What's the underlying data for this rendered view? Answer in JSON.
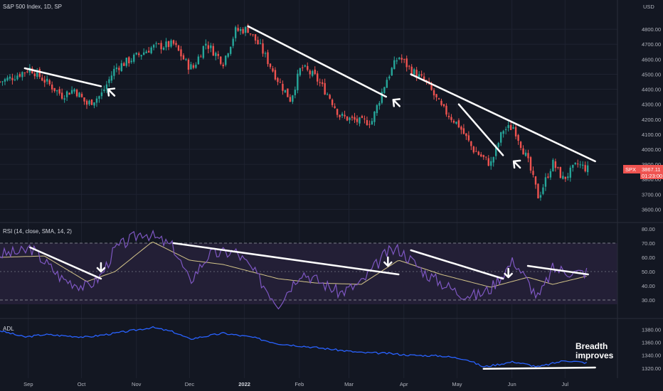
{
  "header": {
    "title": "S&P 500 Index, 1D, SP",
    "currency": "USD"
  },
  "price_badge": {
    "symbol": "SPX",
    "value": "3867.11",
    "timer": "01:23:00"
  },
  "colors": {
    "background": "#131722",
    "up": "#26a69a",
    "down": "#ef5350",
    "rsi_line": "#7e57c2",
    "rsi_ma": "#d4c58a",
    "rsi_band": "#2a2540",
    "adl_line": "#2962ff",
    "trendline": "#ffffff",
    "grid": "#1e2230"
  },
  "chart_data": [
    {
      "type": "candlestick",
      "title": "S&P 500 Index, 1D, SP",
      "ylim": [
        3550,
        4900
      ],
      "y_ticks": [
        "4800.00",
        "4700.00",
        "4600.00",
        "4500.00",
        "4400.00",
        "4300.00",
        "4200.00",
        "4100.00",
        "4000.00",
        "3900.00",
        "3800.00",
        "3700.00",
        "3600.00"
      ],
      "x_ticks": [
        "Sep",
        "Oct",
        "Nov",
        "Dec",
        "2022",
        "Feb",
        "Mar",
        "Apr",
        "May",
        "Jun",
        "Jul"
      ],
      "close_path": [
        {
          "d": "Aug 16",
          "v": 4450
        },
        {
          "d": "Aug 23",
          "v": 4480
        },
        {
          "d": "Aug 30",
          "v": 4520
        },
        {
          "d": "Sep 02",
          "v": 4540
        },
        {
          "d": "Sep 10",
          "v": 4460
        },
        {
          "d": "Sep 20",
          "v": 4360
        },
        {
          "d": "Sep 27",
          "v": 4400
        },
        {
          "d": "Oct 04",
          "v": 4300
        },
        {
          "d": "Oct 12",
          "v": 4360
        },
        {
          "d": "Oct 20",
          "v": 4540
        },
        {
          "d": "Nov 01",
          "v": 4620
        },
        {
          "d": "Nov 10",
          "v": 4680
        },
        {
          "d": "Nov 22",
          "v": 4700
        },
        {
          "d": "Nov 30",
          "v": 4560
        },
        {
          "d": "Dec 03",
          "v": 4540
        },
        {
          "d": "Dec 10",
          "v": 4710
        },
        {
          "d": "Dec 20",
          "v": 4580
        },
        {
          "d": "Dec 27",
          "v": 4790
        },
        {
          "d": "Jan 03",
          "v": 4800
        },
        {
          "d": "Jan 10",
          "v": 4680
        },
        {
          "d": "Jan 20",
          "v": 4460
        },
        {
          "d": "Jan 27",
          "v": 4330
        },
        {
          "d": "Feb 02",
          "v": 4550
        },
        {
          "d": "Feb 10",
          "v": 4480
        },
        {
          "d": "Feb 18",
          "v": 4350
        },
        {
          "d": "Feb 24",
          "v": 4220
        },
        {
          "d": "Mar 08",
          "v": 4180
        },
        {
          "d": "Mar 14",
          "v": 4190
        },
        {
          "d": "Mar 22",
          "v": 4460
        },
        {
          "d": "Mar 29",
          "v": 4620
        },
        {
          "d": "Apr 05",
          "v": 4530
        },
        {
          "d": "Apr 14",
          "v": 4440
        },
        {
          "d": "Apr 22",
          "v": 4280
        },
        {
          "d": "May 02",
          "v": 4160
        },
        {
          "d": "May 10",
          "v": 4000
        },
        {
          "d": "May 20",
          "v": 3900
        },
        {
          "d": "May 27",
          "v": 4130
        },
        {
          "d": "Jun 02",
          "v": 4150
        },
        {
          "d": "Jun 10",
          "v": 3920
        },
        {
          "d": "Jun 16",
          "v": 3680
        },
        {
          "d": "Jun 24",
          "v": 3910
        },
        {
          "d": "Jun 30",
          "v": 3800
        },
        {
          "d": "Jul 08",
          "v": 3900
        },
        {
          "d": "Jul 14",
          "v": 3867
        }
      ]
    },
    {
      "type": "line",
      "title": "RSI (14, close, SMA, 14, 2)",
      "ylim": [
        25,
        80
      ],
      "y_ticks": [
        "80.00",
        "70.00",
        "60.00",
        "50.00",
        "40.00",
        "30.00"
      ],
      "bands": [
        30,
        70
      ],
      "rsi": [
        {
          "d": "Aug 16",
          "v": 62
        },
        {
          "d": "Aug 30",
          "v": 64
        },
        {
          "d": "Sep 02",
          "v": 67
        },
        {
          "d": "Sep 20",
          "v": 45
        },
        {
          "d": "Oct 04",
          "v": 39
        },
        {
          "d": "Oct 12",
          "v": 47
        },
        {
          "d": "Oct 20",
          "v": 66
        },
        {
          "d": "Nov 05",
          "v": 78
        },
        {
          "d": "Nov 22",
          "v": 67
        },
        {
          "d": "Dec 01",
          "v": 43
        },
        {
          "d": "Dec 12",
          "v": 62
        },
        {
          "d": "Dec 27",
          "v": 64
        },
        {
          "d": "Jan 05",
          "v": 52
        },
        {
          "d": "Jan 20",
          "v": 27
        },
        {
          "d": "Feb 02",
          "v": 50
        },
        {
          "d": "Feb 24",
          "v": 35
        },
        {
          "d": "Mar 08",
          "v": 42
        },
        {
          "d": "Mar 22",
          "v": 63
        },
        {
          "d": "Mar 29",
          "v": 66
        },
        {
          "d": "Apr 14",
          "v": 48
        },
        {
          "d": "May 02",
          "v": 35
        },
        {
          "d": "May 12",
          "v": 33
        },
        {
          "d": "May 20",
          "v": 38
        },
        {
          "d": "Jun 02",
          "v": 58
        },
        {
          "d": "Jun 16",
          "v": 31
        },
        {
          "d": "Jun 24",
          "v": 52
        },
        {
          "d": "Jul 08",
          "v": 49
        },
        {
          "d": "Jul 14",
          "v": 50
        }
      ],
      "rsi_ma": [
        {
          "d": "Aug 16",
          "v": 60
        },
        {
          "d": "Sep 10",
          "v": 61
        },
        {
          "d": "Oct 04",
          "v": 43
        },
        {
          "d": "Oct 20",
          "v": 50
        },
        {
          "d": "Nov 10",
          "v": 71
        },
        {
          "d": "Dec 01",
          "v": 58
        },
        {
          "d": "Dec 20",
          "v": 55
        },
        {
          "d": "Jan 20",
          "v": 45
        },
        {
          "d": "Feb 10",
          "v": 42
        },
        {
          "d": "Mar 08",
          "v": 41
        },
        {
          "d": "Mar 29",
          "v": 58
        },
        {
          "d": "Apr 22",
          "v": 48
        },
        {
          "d": "May 20",
          "v": 39
        },
        {
          "d": "Jun 10",
          "v": 46
        },
        {
          "d": "Jun 24",
          "v": 41
        },
        {
          "d": "Jul 14",
          "v": 47
        }
      ]
    },
    {
      "type": "line",
      "title": "ADL",
      "ylim": [
        1310,
        1388
      ],
      "y_ticks": [
        "1380.00",
        "1360.00",
        "1340.00",
        "1320.00"
      ],
      "adl": [
        {
          "d": "Aug 16",
          "v": 1378
        },
        {
          "d": "Aug 30",
          "v": 1368
        },
        {
          "d": "Sep 10",
          "v": 1372
        },
        {
          "d": "Oct 04",
          "v": 1368
        },
        {
          "d": "Oct 20",
          "v": 1374
        },
        {
          "d": "Nov 10",
          "v": 1383
        },
        {
          "d": "Nov 22",
          "v": 1376
        },
        {
          "d": "Dec 01",
          "v": 1365
        },
        {
          "d": "Dec 20",
          "v": 1374
        },
        {
          "d": "Jan 05",
          "v": 1368
        },
        {
          "d": "Jan 20",
          "v": 1358
        },
        {
          "d": "Feb 10",
          "v": 1352
        },
        {
          "d": "Mar 08",
          "v": 1344
        },
        {
          "d": "Mar 22",
          "v": 1343
        },
        {
          "d": "Apr 05",
          "v": 1340
        },
        {
          "d": "Apr 22",
          "v": 1339
        },
        {
          "d": "May 06",
          "v": 1334
        },
        {
          "d": "May 16",
          "v": 1322
        },
        {
          "d": "Jun 02",
          "v": 1330
        },
        {
          "d": "Jun 16",
          "v": 1322
        },
        {
          "d": "Jul 01",
          "v": 1332
        },
        {
          "d": "Jul 14",
          "v": 1328
        }
      ]
    }
  ],
  "trendlines": {
    "price": [
      {
        "from": {
          "d": "Aug 30",
          "v": 4540
        },
        "to": {
          "d": "Oct 12",
          "v": 4420
        }
      },
      {
        "from": {
          "d": "Jan 03",
          "v": 4820
        },
        "to": {
          "d": "Mar 22",
          "v": 4350
        }
      },
      {
        "from": {
          "d": "Apr 05",
          "v": 4500
        },
        "to": {
          "d": "Jul 18",
          "v": 3920
        }
      },
      {
        "from": {
          "d": "May 02",
          "v": 4300
        },
        "to": {
          "d": "May 27",
          "v": 3960
        }
      }
    ],
    "rsi": [
      {
        "from": {
          "d": "Sep 02",
          "v": 67
        },
        "to": {
          "d": "Oct 12",
          "v": 45
        }
      },
      {
        "from": {
          "d": "Nov 22",
          "v": 70
        },
        "to": {
          "d": "Mar 29",
          "v": 48
        }
      },
      {
        "from": {
          "d": "Apr 05",
          "v": 65
        },
        "to": {
          "d": "May 27",
          "v": 45
        }
      },
      {
        "from": {
          "d": "Jun 10",
          "v": 54
        },
        "to": {
          "d": "Jul 14",
          "v": 48
        }
      }
    ],
    "adl": [
      {
        "from": {
          "d": "May 16",
          "v": 1319
        },
        "to": {
          "d": "Jul 18",
          "v": 1321
        }
      }
    ]
  },
  "annotations": {
    "adl_note_line1": "Breadth",
    "adl_note_line2": "improves"
  }
}
